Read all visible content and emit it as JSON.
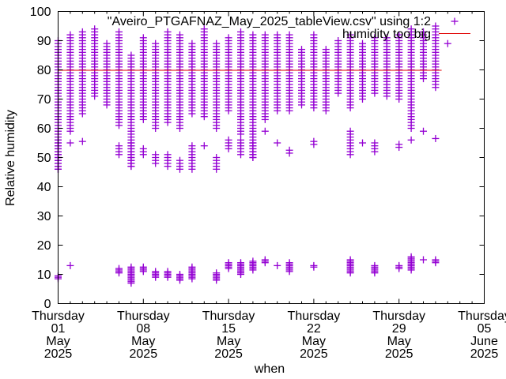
{
  "chart_data": {
    "type": "scatter",
    "title": "",
    "xlabel": "when",
    "ylabel": "Relative humidity",
    "ylim": [
      0,
      100
    ],
    "xlim_days": [
      0,
      35
    ],
    "x_origin": "2025-05-01",
    "yticks": [
      0,
      10,
      20,
      30,
      40,
      50,
      60,
      70,
      80,
      90,
      100
    ],
    "xticks": [
      {
        "day": 0,
        "lines": [
          "Thursday",
          "01",
          "May",
          "2025"
        ]
      },
      {
        "day": 7,
        "lines": [
          "Thursday",
          "08",
          "May",
          "2025"
        ]
      },
      {
        "day": 14,
        "lines": [
          "Thursday",
          "15",
          "May",
          "2025"
        ]
      },
      {
        "day": 21,
        "lines": [
          "Thursday",
          "22",
          "May",
          "2025"
        ]
      },
      {
        "day": 28,
        "lines": [
          "Thursday",
          "29",
          "May",
          "2025"
        ]
      },
      {
        "day": 35,
        "lines": [
          "Thursday",
          "05",
          "June",
          "2025"
        ]
      }
    ],
    "grid": false,
    "legend_position": "top-right",
    "series": [
      {
        "name": "\"Aveiro_PTGAFNAZ_May_2025_tableView.csv\" using 1:2",
        "style": "points-plus",
        "color": "#9400d3",
        "daily_clusters": [
          {
            "day": 0,
            "high": [
              46,
              90
            ],
            "mid": [
              46,
              56
            ],
            "low": [
              8.5,
              9.5
            ]
          },
          {
            "day": 1,
            "high": [
              59,
              92
            ],
            "mid": [
              55,
              55
            ],
            "low": [
              13,
              13
            ]
          },
          {
            "day": 2,
            "high": [
              65,
              93
            ],
            "mid": [
              55.5,
              55.5
            ],
            "low": null
          },
          {
            "day": 3,
            "high": [
              71,
              94
            ],
            "mid": null,
            "low": null
          },
          {
            "day": 4,
            "high": [
              68,
              89
            ],
            "mid": null,
            "low": null
          },
          {
            "day": 5,
            "high": [
              61,
              93
            ],
            "mid": [
              51,
              54
            ],
            "low": [
              10.5,
              12
            ]
          },
          {
            "day": 6,
            "high": [
              47,
              85
            ],
            "mid": [
              47,
              55
            ],
            "low": [
              7,
              12.5
            ]
          },
          {
            "day": 7,
            "high": [
              63,
              91
            ],
            "mid": [
              51,
              53
            ],
            "low": [
              11,
              12.5
            ]
          },
          {
            "day": 8,
            "high": [
              60,
              89
            ],
            "mid": [
              48,
              51
            ],
            "low": [
              9,
              11
            ]
          },
          {
            "day": 9,
            "high": [
              62,
              93
            ],
            "mid": [
              47,
              51
            ],
            "low": [
              9,
              11
            ]
          },
          {
            "day": 10,
            "high": [
              60,
              92
            ],
            "mid": [
              46,
              49
            ],
            "low": [
              8,
              10
            ]
          },
          {
            "day": 11,
            "high": [
              65,
              89
            ],
            "mid": [
              46,
              54
            ],
            "low": [
              8.5,
              12.5
            ]
          },
          {
            "day": 12,
            "high": [
              64,
              94
            ],
            "mid": [
              54,
              54.5
            ],
            "low": null
          },
          {
            "day": 13,
            "high": [
              60,
              89
            ],
            "mid": [
              46,
              50
            ],
            "low": [
              8,
              10.5
            ]
          },
          {
            "day": 14,
            "high": [
              66,
              91
            ],
            "mid": [
              53,
              56
            ],
            "low": [
              12,
              14
            ]
          },
          {
            "day": 15,
            "high": [
              58,
              93
            ],
            "mid": [
              51,
              56
            ],
            "low": [
              10,
              14
            ]
          },
          {
            "day": 16,
            "high": [
              50,
              92
            ],
            "mid": [
              50,
              55
            ],
            "low": [
              11.5,
              14.5
            ]
          },
          {
            "day": 17,
            "high": [
              63,
              92
            ],
            "mid": [
              59,
              59
            ],
            "low": [
              14,
              15
            ]
          },
          {
            "day": 18,
            "high": [
              66,
              92
            ],
            "mid": [
              55,
              55
            ],
            "low": [
              13,
              13
            ]
          },
          {
            "day": 19,
            "high": [
              66,
              92
            ],
            "mid": [
              51.5,
              52.5
            ],
            "low": [
              11,
              14
            ]
          },
          {
            "day": 20,
            "high": [
              68,
              87
            ],
            "mid": null,
            "low": null
          },
          {
            "day": 21,
            "high": [
              67,
              92
            ],
            "mid": [
              54.5,
              55.5
            ],
            "low": [
              12.5,
              13
            ]
          },
          {
            "day": 22,
            "high": [
              66,
              87
            ],
            "mid": null,
            "low": null
          },
          {
            "day": 23,
            "high": [
              72,
              90
            ],
            "mid": null,
            "low": null
          },
          {
            "day": 24,
            "high": [
              67,
              92
            ],
            "mid": [
              51,
              59
            ],
            "low": [
              10.5,
              15
            ]
          },
          {
            "day": 25,
            "high": [
              70,
              89
            ],
            "mid": [
              55,
              55
            ],
            "low": null
          },
          {
            "day": 26,
            "high": [
              72,
              91
            ],
            "mid": [
              52,
              55.5
            ],
            "low": [
              10.5,
              13
            ]
          },
          {
            "day": 27,
            "high": [
              71,
              91
            ],
            "mid": null,
            "low": null
          },
          {
            "day": 28,
            "high": [
              70,
              92
            ],
            "mid": [
              53.5,
              55
            ],
            "low": [
              12,
              13
            ]
          },
          {
            "day": 29,
            "high": [
              60,
              94
            ],
            "mid": [
              56,
              56
            ],
            "low": [
              11.5,
              16
            ]
          },
          {
            "day": 30,
            "high": [
              77,
              93
            ],
            "mid": [
              59,
              59.5
            ],
            "low": [
              15,
              15
            ]
          },
          {
            "day": 31,
            "high": [
              74,
              95
            ],
            "mid": [
              56.5,
              56.5
            ],
            "low": [
              14,
              15
            ]
          },
          {
            "day": 32,
            "high": [
              89,
              89
            ],
            "mid": null,
            "low": null
          }
        ]
      },
      {
        "name": "humidity too big",
        "style": "line",
        "color": "#e00000",
        "y": 80,
        "x_range_days": [
          0,
          31.5
        ]
      }
    ]
  }
}
